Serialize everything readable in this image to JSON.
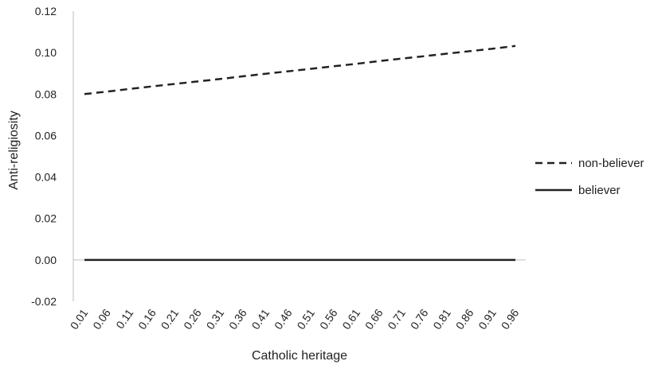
{
  "chart_data": {
    "type": "line",
    "xlabel": "Catholic heritage",
    "ylabel": "Anti-religiosity",
    "categories": [
      "0.01",
      "0.06",
      "0.11",
      "0.16",
      "0.21",
      "0.26",
      "0.31",
      "0.36",
      "0.41",
      "0.46",
      "0.51",
      "0.56",
      "0.61",
      "0.66",
      "0.71",
      "0.76",
      "0.81",
      "0.86",
      "0.91",
      "0.96"
    ],
    "y_ticks": [
      "-0.02",
      "0.00",
      "0.02",
      "0.04",
      "0.06",
      "0.08",
      "0.10",
      "0.12"
    ],
    "ylim": [
      -0.02,
      0.12
    ],
    "grid": false,
    "legend_position": "right",
    "series": [
      {
        "name": "non-believer",
        "style": "dashed",
        "color": "#222222",
        "values": [
          0.08,
          0.0812,
          0.0825,
          0.0837,
          0.0849,
          0.0861,
          0.0873,
          0.0886,
          0.0898,
          0.091,
          0.0922,
          0.0934,
          0.0946,
          0.0959,
          0.0971,
          0.0983,
          0.0995,
          0.1007,
          0.1019,
          0.1032
        ]
      },
      {
        "name": "believer",
        "style": "solid",
        "color": "#222222",
        "values": [
          0,
          0,
          0,
          0,
          0,
          0,
          0,
          0,
          0,
          0,
          0,
          0,
          0,
          0,
          0,
          0,
          0,
          0,
          0,
          0
        ]
      }
    ]
  }
}
